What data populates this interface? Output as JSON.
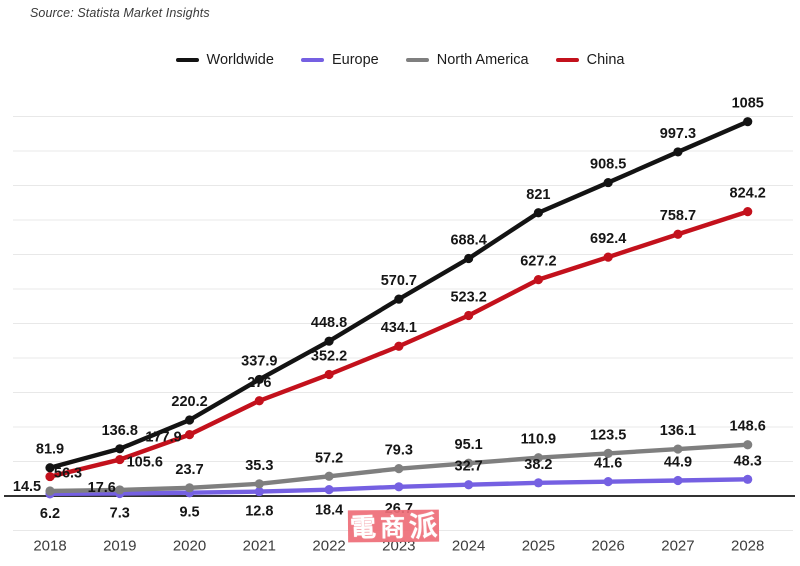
{
  "source": "Source: Statista Market Insights",
  "legend": {
    "items": [
      {
        "label": "Worldwide",
        "color": "#131313"
      },
      {
        "label": "Europe",
        "color": "#7560e2"
      },
      {
        "label": "North America",
        "color": "#7f7f7f"
      },
      {
        "label": "China",
        "color": "#c3111c"
      }
    ]
  },
  "watermark": {
    "text": "電商派",
    "chars": [
      "電",
      "商",
      "派"
    ],
    "background": "#ee6d78",
    "color": "#ffffff"
  },
  "chart_data": {
    "type": "line",
    "categories": [
      "2018",
      "2019",
      "2020",
      "2021",
      "2022",
      "2023",
      "2024",
      "2025",
      "2026",
      "2027",
      "2028"
    ],
    "series": [
      {
        "name": "Worldwide",
        "color": "#131313",
        "values": [
          81.9,
          136.8,
          220.2,
          337.9,
          448.8,
          570.7,
          688.4,
          821,
          908.5,
          997.3,
          1085
        ],
        "labels": [
          "81.9",
          "136.8",
          "220.2",
          "337.9",
          "448.8",
          "570.7",
          "688.4",
          "821",
          "908.5",
          "997.3",
          "1085"
        ]
      },
      {
        "name": "Europe",
        "color": "#7560e2",
        "values": [
          6.2,
          7.3,
          9.5,
          12.8,
          18.4,
          26.7,
          32.7,
          38.2,
          41.6,
          44.9,
          48.3
        ],
        "labels": [
          "6.2",
          "7.3",
          "9.5",
          "12.8",
          "18.4",
          "26.7",
          "32.7",
          "38.2",
          "41.6",
          "44.9",
          "48.3"
        ]
      },
      {
        "name": "North America",
        "color": "#7f7f7f",
        "values": [
          14.5,
          17.6,
          23.7,
          35.3,
          57.2,
          79.3,
          95.1,
          110.9,
          123.5,
          136.1,
          148.6
        ],
        "labels": [
          "14.5",
          "17.6",
          "23.7",
          "35.3",
          "57.2",
          "79.3",
          "95.1",
          "110.9",
          "123.5",
          "136.1",
          "148.6"
        ]
      },
      {
        "name": "China",
        "color": "#c3111c",
        "values": [
          56.3,
          105.6,
          177.9,
          276,
          352.2,
          434.1,
          523.2,
          627.2,
          692.4,
          758.7,
          824.2
        ],
        "labels": [
          "56.3",
          "105.6",
          "177.9",
          "276",
          "352.2",
          "434.1",
          "523.2",
          "627.2",
          "692.4",
          "758.7",
          "824.2"
        ]
      }
    ],
    "title": "",
    "xlabel": "",
    "ylabel": "",
    "ylim": [
      -100,
      1100
    ],
    "grid": true,
    "grid_step": 100,
    "legend_position": "top-center",
    "gridline_color": "#e8e8e8",
    "axis_color": "#333333",
    "value_label_color": "#161616",
    "tick_label_color": "#3d3d3d"
  }
}
